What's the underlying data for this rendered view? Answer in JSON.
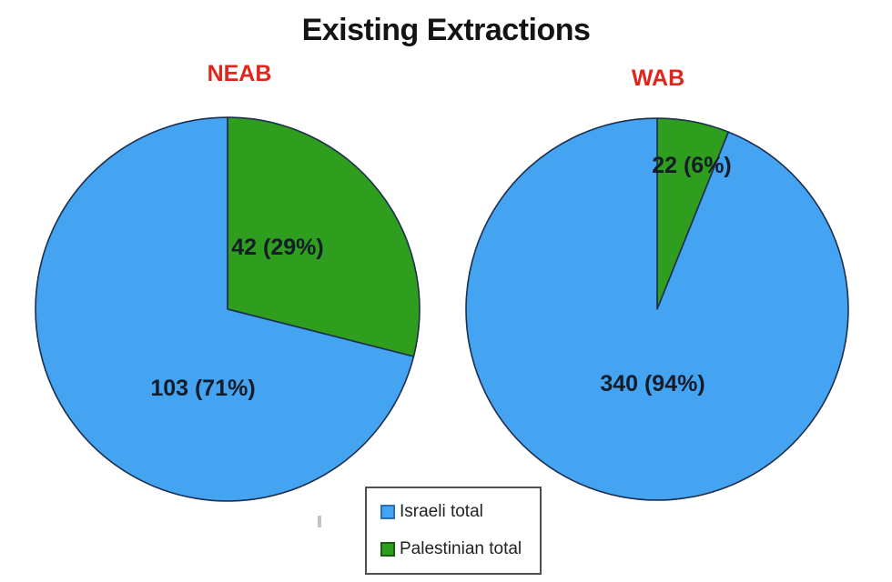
{
  "main_title": "Existing Extractions",
  "chart_data": [
    {
      "type": "pie",
      "title": "NEAB",
      "title_color": "#e0261c",
      "categories": [
        "Israeli total",
        "Palestinian total"
      ],
      "values": [
        103,
        42
      ],
      "percents": [
        71,
        29
      ],
      "slice_labels": [
        "103 (71%)",
        "42 (29%)"
      ],
      "colors": [
        "#44a4f2",
        "#2f9d1d"
      ],
      "stroke": "#1e2f4d",
      "start_angle": "12 o'clock",
      "direction": "clockwise",
      "draw_order": [
        1,
        0
      ]
    },
    {
      "type": "pie",
      "title": "WAB",
      "title_color": "#e0261c",
      "categories": [
        "Israeli total",
        "Palestinian total"
      ],
      "values": [
        340,
        22
      ],
      "percents": [
        94,
        6
      ],
      "slice_labels": [
        "340 (94%)",
        "22 (6%)"
      ],
      "colors": [
        "#44a4f2",
        "#2f9d1d"
      ],
      "stroke": "#1e2f4d",
      "start_angle": "12 o'clock",
      "direction": "clockwise",
      "draw_order": [
        1,
        0
      ]
    }
  ],
  "legend": {
    "items": [
      {
        "label": "Israeli total",
        "color": "#44a4f2",
        "border": "#2a6fb0"
      },
      {
        "label": "Palestinian total",
        "color": "#2f9d1d",
        "border": "#1b5e10"
      }
    ],
    "position": "bottom-center",
    "border_color": "#4f4f4f"
  }
}
